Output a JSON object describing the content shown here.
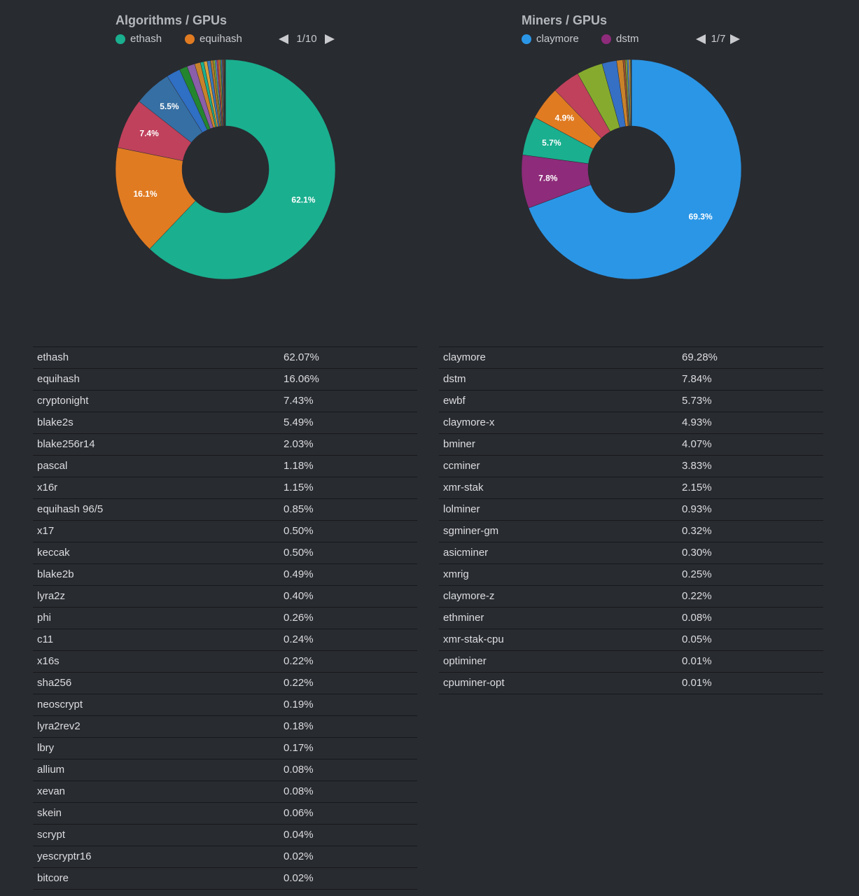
{
  "chart_data": [
    {
      "type": "pie",
      "title": "Algorithms / GPUs",
      "legend_page": "1/10",
      "categories": [
        "ethash",
        "equihash",
        "cryptonight",
        "blake2s",
        "blake256r14",
        "pascal",
        "x16r",
        "equihash 96/5",
        "x17",
        "keccak",
        "blake2b",
        "lyra2z",
        "phi",
        "c11",
        "x16s",
        "sha256",
        "neoscrypt",
        "lyra2rev2",
        "lbry",
        "allium",
        "xevan",
        "skein",
        "scrypt",
        "yescryptr16",
        "bitcore"
      ],
      "values": [
        62.07,
        16.06,
        7.43,
        5.49,
        2.03,
        1.18,
        1.15,
        0.85,
        0.5,
        0.5,
        0.49,
        0.4,
        0.26,
        0.24,
        0.22,
        0.22,
        0.19,
        0.18,
        0.17,
        0.08,
        0.08,
        0.06,
        0.04,
        0.02,
        0.02
      ],
      "value_labels": [
        "62.1%",
        "16.1%",
        "7.4%",
        "5.5%",
        null,
        null,
        null,
        null,
        null,
        null,
        null,
        null,
        null,
        null,
        null,
        null,
        null,
        null,
        null,
        null,
        null,
        null,
        null,
        null,
        null
      ],
      "colors": [
        "#1aaf8f",
        "#e07b22",
        "#c0415c",
        "#366fa3",
        "#2f6fc4",
        "#23862e",
        "#8a5ea8",
        "#c9822a",
        "#1aaf8f",
        "#d8a23a",
        "#3c78b8",
        "#b3762a",
        "#86aa2e",
        "#5a8fd0",
        "#c0415c",
        "#e07b22",
        "#7a9a3a",
        "#3670c4",
        "#a0522d",
        "#1aaf8f",
        "#e07b22",
        "#8e2b7a",
        "#4aa0e0",
        "#86aa2e",
        "#c0415c"
      ]
    },
    {
      "type": "pie",
      "title": "Miners / GPUs",
      "legend_page": "1/7",
      "categories": [
        "claymore",
        "dstm",
        "ewbf",
        "claymore-x",
        "bminer",
        "ccminer",
        "xmr-stak",
        "lolminer",
        "sgminer-gm",
        "asicminer",
        "xmrig",
        "claymore-z",
        "ethminer",
        "xmr-stak-cpu",
        "optiminer",
        "cpuminer-opt"
      ],
      "values": [
        69.28,
        7.84,
        5.73,
        4.93,
        4.07,
        3.83,
        2.15,
        0.93,
        0.32,
        0.3,
        0.25,
        0.22,
        0.08,
        0.05,
        0.01,
        0.01
      ],
      "value_labels": [
        "69.3%",
        "7.8%",
        "5.7%",
        "4.9%",
        null,
        null,
        null,
        null,
        null,
        null,
        null,
        null,
        null,
        null,
        null,
        null
      ],
      "colors": [
        "#2b96e6",
        "#8e2b7a",
        "#1aaf8f",
        "#e07b22",
        "#c0415c",
        "#86aa2e",
        "#3670c4",
        "#c9822a",
        "#a0522d",
        "#7a9a3a",
        "#5a8fd0",
        "#d8a23a",
        "#1aaf8f",
        "#e07b22",
        "#8e2b7a",
        "#4aa0e0"
      ]
    }
  ],
  "tables": [
    {
      "rows": [
        [
          "ethash",
          "62.07%"
        ],
        [
          "equihash",
          "16.06%"
        ],
        [
          "cryptonight",
          "7.43%"
        ],
        [
          "blake2s",
          "5.49%"
        ],
        [
          "blake256r14",
          "2.03%"
        ],
        [
          "pascal",
          "1.18%"
        ],
        [
          "x16r",
          "1.15%"
        ],
        [
          "equihash 96/5",
          "0.85%"
        ],
        [
          "x17",
          "0.50%"
        ],
        [
          "keccak",
          "0.50%"
        ],
        [
          "blake2b",
          "0.49%"
        ],
        [
          "lyra2z",
          "0.40%"
        ],
        [
          "phi",
          "0.26%"
        ],
        [
          "c11",
          "0.24%"
        ],
        [
          "x16s",
          "0.22%"
        ],
        [
          "sha256",
          "0.22%"
        ],
        [
          "neoscrypt",
          "0.19%"
        ],
        [
          "lyra2rev2",
          "0.18%"
        ],
        [
          "lbry",
          "0.17%"
        ],
        [
          "allium",
          "0.08%"
        ],
        [
          "xevan",
          "0.08%"
        ],
        [
          "skein",
          "0.06%"
        ],
        [
          "scrypt",
          "0.04%"
        ],
        [
          "yescryptr16",
          "0.02%"
        ],
        [
          "bitcore",
          "0.02%"
        ]
      ]
    },
    {
      "rows": [
        [
          "claymore",
          "69.28%"
        ],
        [
          "dstm",
          "7.84%"
        ],
        [
          "ewbf",
          "5.73%"
        ],
        [
          "claymore-x",
          "4.93%"
        ],
        [
          "bminer",
          "4.07%"
        ],
        [
          "ccminer",
          "3.83%"
        ],
        [
          "xmr-stak",
          "2.15%"
        ],
        [
          "lolminer",
          "0.93%"
        ],
        [
          "sgminer-gm",
          "0.32%"
        ],
        [
          "asicminer",
          "0.30%"
        ],
        [
          "xmrig",
          "0.25%"
        ],
        [
          "claymore-z",
          "0.22%"
        ],
        [
          "ethminer",
          "0.08%"
        ],
        [
          "xmr-stak-cpu",
          "0.05%"
        ],
        [
          "optiminer",
          "0.01%"
        ],
        [
          "cpuminer-opt",
          "0.01%"
        ]
      ]
    }
  ]
}
